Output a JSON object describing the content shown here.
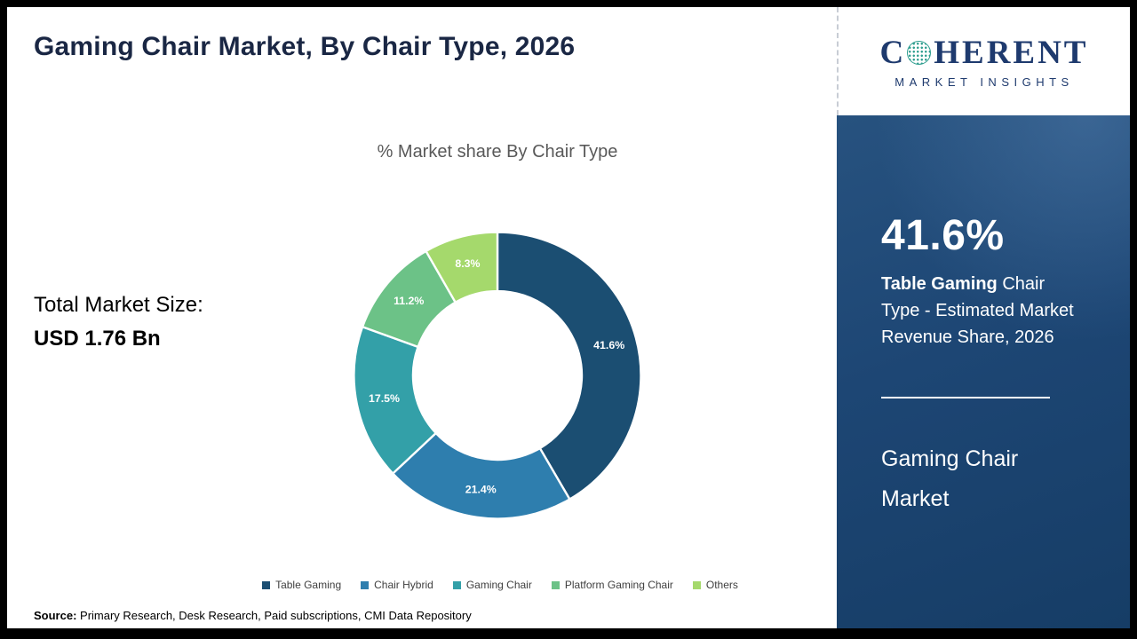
{
  "page": {
    "title": "Gaming Chair Market, By Chair Type, 2026"
  },
  "logo": {
    "c": "C",
    "rest": "HERENT",
    "subtitle": "MARKET INSIGHTS"
  },
  "main": {
    "total_label": "Total Market Size:",
    "total_value": "USD 1.76 Bn",
    "source_label": "Source:",
    "source_text": " Primary Research, Desk Research, Paid subscriptions, CMI Data Repository"
  },
  "chart_data": {
    "type": "pie",
    "donut": true,
    "title": "% Market share By Chair Type",
    "categories": [
      "Table Gaming",
      "Chair Hybrid",
      "Gaming Chair",
      "Platform Gaming Chair",
      "Others"
    ],
    "values": [
      41.6,
      21.4,
      17.5,
      11.2,
      8.3
    ],
    "labels": [
      "41.6%",
      "21.4%",
      "17.5%",
      "11.2%",
      "8.3%"
    ],
    "colors": [
      "#1b4e72",
      "#2e7eae",
      "#33a0a8",
      "#6cc287",
      "#a5d96c"
    ],
    "start_angle_deg": 0,
    "direction": "clockwise",
    "legend_position": "bottom"
  },
  "sidebar": {
    "stat_value": "41.6%",
    "stat_bold": "Table Gaming",
    "stat_rest": " Chair Type - Estimated Market Revenue Share, 2026",
    "footer_line1": "Gaming Chair",
    "footer_line2": "Market",
    "background_color": "#1d4674"
  }
}
